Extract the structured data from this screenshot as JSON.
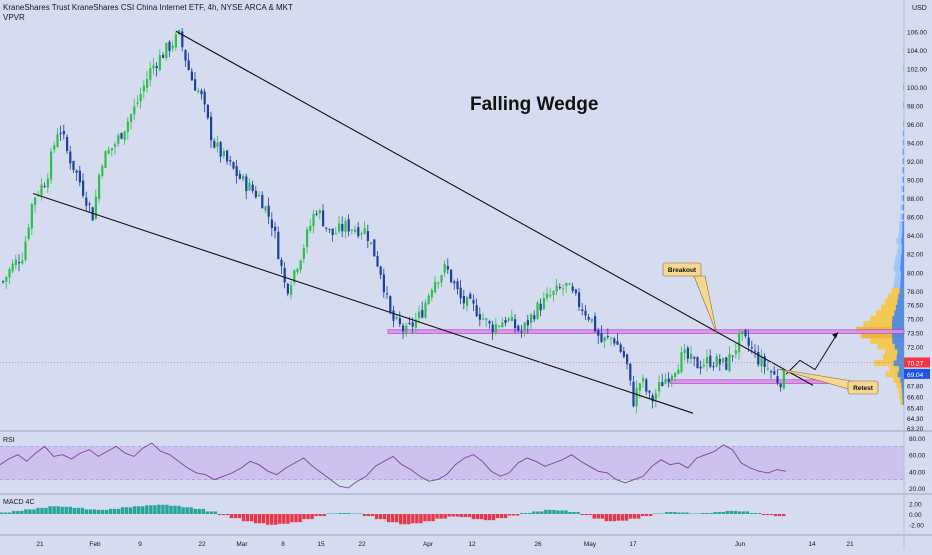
{
  "header": {
    "title": "KraneShares Trust KraneShares CSI China Internet ETF, 4h, NYSE ARCA & MKT",
    "indicator": "VPVR"
  },
  "annotations": {
    "pattern": "Falling Wedge",
    "breakout": "Breakout",
    "retest": "Retest"
  },
  "price_axis": {
    "currency": "USD",
    "last_price": "69.04",
    "marker_price": "70.27"
  },
  "colors": {
    "background": "#d6dcef",
    "up": "#2fbf4a",
    "down": "#1e3fa0",
    "zone": "#e08ef0",
    "rsi_band": "#c9b8ec",
    "rsi_line": "#7e3fa8",
    "last_price_badge": "#1e53e5",
    "marker_badge": "#f23645"
  },
  "chart_data": [
    {
      "type": "candlestick",
      "title": "KraneShares Trust KraneShares CSI China Internet ETF, 4h, NYSE ARCA & MKT",
      "ylim": [
        63.2,
        107.0
      ],
      "y_ticks": [
        "106.00",
        "104.00",
        "102.00",
        "100.00",
        "98.00",
        "96.00",
        "94.00",
        "92.00",
        "90.00",
        "88.00",
        "86.00",
        "84.00",
        "82.00",
        "80.00",
        "78.00",
        "76.50",
        "75.00",
        "73.50",
        "72.00",
        "70.50",
        "69.00",
        "67.80",
        "66.60",
        "65.40",
        "64.30",
        "63.20"
      ],
      "x_ticks": [
        "21",
        "Feb",
        "9",
        "22",
        "Mar",
        "8",
        "15",
        "22",
        "Apr",
        "12",
        "26",
        "May",
        "17",
        "Jun",
        "14",
        "21"
      ],
      "close_path": [
        {
          "x": 2,
          "y": 79.0
        },
        {
          "x": 10,
          "y": 80.5
        },
        {
          "x": 22,
          "y": 82.0
        },
        {
          "x": 32,
          "y": 88.0
        },
        {
          "x": 45,
          "y": 90.0
        },
        {
          "x": 58,
          "y": 96.0
        },
        {
          "x": 66,
          "y": 93.0
        },
        {
          "x": 78,
          "y": 90.0
        },
        {
          "x": 92,
          "y": 86.0
        },
        {
          "x": 100,
          "y": 92.0
        },
        {
          "x": 115,
          "y": 94.0
        },
        {
          "x": 135,
          "y": 98.0
        },
        {
          "x": 150,
          "y": 102.0
        },
        {
          "x": 165,
          "y": 104.0
        },
        {
          "x": 178,
          "y": 105.5
        },
        {
          "x": 190,
          "y": 101.0
        },
        {
          "x": 200,
          "y": 99.0
        },
        {
          "x": 212,
          "y": 94.0
        },
        {
          "x": 225,
          "y": 92.0
        },
        {
          "x": 240,
          "y": 90.0
        },
        {
          "x": 260,
          "y": 88.0
        },
        {
          "x": 272,
          "y": 85.0
        },
        {
          "x": 285,
          "y": 78.0
        },
        {
          "x": 300,
          "y": 82.0
        },
        {
          "x": 315,
          "y": 87.0
        },
        {
          "x": 330,
          "y": 84.0
        },
        {
          "x": 345,
          "y": 85.0
        },
        {
          "x": 365,
          "y": 84.5
        },
        {
          "x": 380,
          "y": 80.0
        },
        {
          "x": 390,
          "y": 75.0
        },
        {
          "x": 405,
          "y": 73.5
        },
        {
          "x": 420,
          "y": 75.5
        },
        {
          "x": 432,
          "y": 79.0
        },
        {
          "x": 445,
          "y": 80.5
        },
        {
          "x": 460,
          "y": 77.0
        },
        {
          "x": 475,
          "y": 76.0
        },
        {
          "x": 490,
          "y": 74.0
        },
        {
          "x": 505,
          "y": 75.0
        },
        {
          "x": 520,
          "y": 73.5
        },
        {
          "x": 535,
          "y": 76.0
        },
        {
          "x": 550,
          "y": 77.5
        },
        {
          "x": 565,
          "y": 78.5
        },
        {
          "x": 575,
          "y": 77.0
        },
        {
          "x": 590,
          "y": 75.0
        },
        {
          "x": 600,
          "y": 72.5
        },
        {
          "x": 612,
          "y": 73.0
        },
        {
          "x": 625,
          "y": 70.5
        },
        {
          "x": 632,
          "y": 66.0
        },
        {
          "x": 640,
          "y": 68.5
        },
        {
          "x": 650,
          "y": 66.0
        },
        {
          "x": 660,
          "y": 68.0
        },
        {
          "x": 672,
          "y": 69.5
        },
        {
          "x": 682,
          "y": 71.0
        },
        {
          "x": 695,
          "y": 70.0
        },
        {
          "x": 710,
          "y": 70.5
        },
        {
          "x": 725,
          "y": 70.0
        },
        {
          "x": 740,
          "y": 73.0
        },
        {
          "x": 748,
          "y": 72.0
        },
        {
          "x": 758,
          "y": 70.5
        },
        {
          "x": 768,
          "y": 69.5
        },
        {
          "x": 778,
          "y": 68.2
        },
        {
          "x": 786,
          "y": 69.0
        }
      ],
      "projection": [
        {
          "x": 786,
          "y": 69.0
        },
        {
          "x": 800,
          "y": 70.5
        },
        {
          "x": 815,
          "y": 69.5
        },
        {
          "x": 838,
          "y": 73.5
        }
      ],
      "trendlines": [
        {
          "name": "wedge-upper",
          "from": {
            "x": 176,
            "y": 106.0
          },
          "to": {
            "x": 813,
            "y": 67.8
          }
        },
        {
          "name": "wedge-lower",
          "from": {
            "x": 33,
            "y": 88.5
          },
          "to": {
            "x": 693,
            "y": 64.8
          }
        }
      ],
      "zones": [
        {
          "name": "resistance-zone",
          "x0": 388,
          "x1": 904,
          "y_top": 73.8,
          "y_bot": 73.4
        },
        {
          "name": "support-zone",
          "x0": 670,
          "x1": 828,
          "y_top": 68.4,
          "y_bot": 68.0
        }
      ],
      "volume_profile": {
        "axis": "price",
        "bins": [
          {
            "price": 66.0,
            "volume": 0.08,
            "kind": "value-area"
          },
          {
            "price": 66.6,
            "volume": 0.1,
            "kind": "value-area"
          },
          {
            "price": 67.2,
            "volume": 0.12,
            "kind": "value-area"
          },
          {
            "price": 67.8,
            "volume": 0.16,
            "kind": "value-area"
          },
          {
            "price": 68.4,
            "volume": 0.22,
            "kind": "value-area"
          },
          {
            "price": 69.0,
            "volume": 0.38,
            "kind": "value-area"
          },
          {
            "price": 69.6,
            "volume": 0.3,
            "kind": "value-area"
          },
          {
            "price": 70.2,
            "volume": 0.62,
            "kind": "value-area"
          },
          {
            "price": 70.8,
            "volume": 0.44,
            "kind": "value-area"
          },
          {
            "price": 71.4,
            "volume": 0.4,
            "kind": "value-area"
          },
          {
            "price": 72.0,
            "volume": 0.55,
            "kind": "value-area"
          },
          {
            "price": 72.6,
            "volume": 0.7,
            "kind": "value-area"
          },
          {
            "price": 73.2,
            "volume": 0.9,
            "kind": "value-area"
          },
          {
            "price": 73.8,
            "volume": 1.0,
            "kind": "value-area"
          },
          {
            "price": 74.4,
            "volume": 0.85,
            "kind": "value-area"
          },
          {
            "price": 75.0,
            "volume": 0.7,
            "kind": "value-area"
          },
          {
            "price": 75.6,
            "volume": 0.58,
            "kind": "value-area"
          },
          {
            "price": 76.2,
            "volume": 0.48,
            "kind": "value-area"
          },
          {
            "price": 76.8,
            "volume": 0.4,
            "kind": "value-area"
          },
          {
            "price": 77.4,
            "volume": 0.34,
            "kind": "value-area"
          },
          {
            "price": 78.0,
            "volume": 0.26,
            "kind": "value-area"
          },
          {
            "price": 78.6,
            "volume": 0.22,
            "kind": "outside"
          },
          {
            "price": 79.2,
            "volume": 0.2,
            "kind": "outside"
          },
          {
            "price": 79.8,
            "volume": 0.18,
            "kind": "outside"
          },
          {
            "price": 80.4,
            "volume": 0.22,
            "kind": "outside"
          },
          {
            "price": 81.0,
            "volume": 0.2,
            "kind": "outside"
          },
          {
            "price": 81.6,
            "volume": 0.18,
            "kind": "outside"
          },
          {
            "price": 82.2,
            "volume": 0.14,
            "kind": "outside"
          },
          {
            "price": 82.8,
            "volume": 0.12,
            "kind": "outside"
          },
          {
            "price": 83.4,
            "volume": 0.16,
            "kind": "outside"
          },
          {
            "price": 84.0,
            "volume": 0.12,
            "kind": "outside"
          },
          {
            "price": 84.6,
            "volume": 0.1,
            "kind": "outside"
          },
          {
            "price": 85.2,
            "volume": 0.1,
            "kind": "outside"
          },
          {
            "price": 86.0,
            "volume": 0.08,
            "kind": "outside"
          },
          {
            "price": 87.0,
            "volume": 0.07,
            "kind": "outside"
          },
          {
            "price": 88.0,
            "volume": 0.06,
            "kind": "outside"
          },
          {
            "price": 89.0,
            "volume": 0.06,
            "kind": "outside"
          },
          {
            "price": 90.0,
            "volume": 0.05,
            "kind": "outside"
          },
          {
            "price": 91.0,
            "volume": 0.05,
            "kind": "outside"
          },
          {
            "price": 92.0,
            "volume": 0.04,
            "kind": "outside"
          },
          {
            "price": 93.0,
            "volume": 0.04,
            "kind": "outside"
          },
          {
            "price": 94.0,
            "volume": 0.03,
            "kind": "outside"
          },
          {
            "price": 95.0,
            "volume": 0.03,
            "kind": "outside"
          },
          {
            "price": 96.0,
            "volume": 0.02,
            "kind": "outside"
          },
          {
            "price": 98.0,
            "volume": 0.02,
            "kind": "outside"
          },
          {
            "price": 100.0,
            "volume": 0.02,
            "kind": "outside"
          },
          {
            "price": 102.0,
            "volume": 0.015,
            "kind": "outside"
          },
          {
            "price": 104.0,
            "volume": 0.01,
            "kind": "outside"
          }
        ]
      }
    },
    {
      "type": "line",
      "title": "RSI",
      "ylim": [
        15,
        85
      ],
      "band": [
        30,
        70
      ],
      "y_ticks": [
        "80.00",
        "60.00",
        "40.00",
        "20.00"
      ],
      "values": [
        48,
        55,
        60,
        52,
        62,
        70,
        58,
        60,
        55,
        62,
        66,
        58,
        64,
        70,
        62,
        58,
        68,
        74,
        64,
        60,
        52,
        44,
        38,
        36,
        30,
        34,
        38,
        44,
        52,
        48,
        40,
        36,
        44,
        50,
        56,
        46,
        38,
        30,
        22,
        20,
        28,
        34,
        46,
        52,
        58,
        48,
        42,
        34,
        28,
        30,
        36,
        48,
        56,
        60,
        52,
        40,
        34,
        38,
        50,
        56,
        52,
        46,
        50,
        54,
        60,
        52,
        46,
        40,
        38,
        30,
        26,
        30,
        34,
        46,
        54,
        48,
        50,
        44,
        56,
        60,
        64,
        72,
        66,
        50,
        44,
        40,
        38,
        42,
        40
      ]
    },
    {
      "type": "bar",
      "title": "MACD 4C",
      "ylim": [
        -3.5,
        3.5
      ],
      "y_ticks": [
        "2.00",
        "0.00",
        "-2.00"
      ],
      "values": [
        0.3,
        0.6,
        0.9,
        1.2,
        1.5,
        1.4,
        1.2,
        0.9,
        0.8,
        1.0,
        1.3,
        1.5,
        1.7,
        1.8,
        1.6,
        1.3,
        1.0,
        0.5,
        -0.2,
        -0.8,
        -1.4,
        -1.8,
        -2.1,
        -1.9,
        -1.6,
        -1.0,
        -0.4,
        0.1,
        0.2,
        0.1,
        -0.4,
        -1.0,
        -1.6,
        -2.0,
        -1.8,
        -1.4,
        -0.9,
        -0.5,
        -0.6,
        -1.0,
        -1.2,
        -0.8,
        -0.3,
        0.2,
        0.5,
        0.8,
        0.7,
        0.4,
        -0.2,
        -0.9,
        -1.4,
        -1.3,
        -0.9,
        -0.4,
        0.1,
        0.4,
        0.3,
        0.1,
        0.2,
        0.4,
        0.6,
        0.5,
        0.2,
        -0.2,
        -0.4
      ]
    }
  ]
}
